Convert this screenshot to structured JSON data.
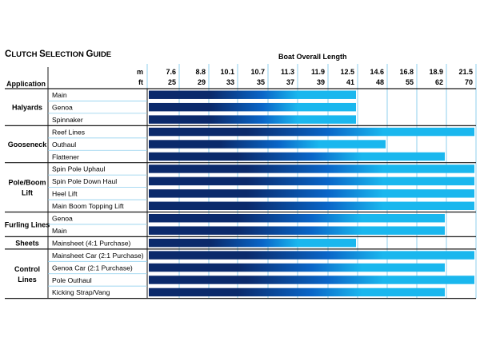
{
  "title": "Clutch Selection Guide",
  "headers": {
    "boat_length": "Boat Overall Length",
    "application": "Application",
    "unit_m": "m",
    "unit_ft": "ft"
  },
  "chart_data": {
    "type": "bar",
    "orientation": "horizontal",
    "lengths_m": [
      "7.6",
      "8.8",
      "10.1",
      "10.7",
      "11.3",
      "11.9",
      "12.5",
      "14.6",
      "16.8",
      "18.9",
      "21.5"
    ],
    "lengths_ft": [
      "25",
      "29",
      "33",
      "35",
      "37",
      "39",
      "41",
      "48",
      "55",
      "62",
      "70"
    ],
    "colors": {
      "dark": "#0b2a6b",
      "mid": "#0a66c8",
      "light": "#1ab7ee",
      "grid": "#8fcfee",
      "border": "#1a1a1a"
    },
    "groups": [
      {
        "name": "Halyards",
        "rows": [
          {
            "label": "Main",
            "end": "41"
          },
          {
            "label": "Genoa",
            "end": "41"
          },
          {
            "label": "Spinnaker",
            "end": "41"
          }
        ]
      },
      {
        "name": "Gooseneck",
        "rows": [
          {
            "label": "Reef Lines",
            "end": "70"
          },
          {
            "label": "Outhaul",
            "end": "48"
          },
          {
            "label": "Flattener",
            "end": "62"
          }
        ]
      },
      {
        "name": "Pole/Boom Lift",
        "rows": [
          {
            "label": "Spin Pole Uphaul",
            "end": "70"
          },
          {
            "label": "Spin Pole Down Haul",
            "end": "70"
          },
          {
            "label": "Heel Lift",
            "end": "70"
          },
          {
            "label": "Main Boom Topping Lift",
            "end": "70"
          }
        ]
      },
      {
        "name": "Furling Lines",
        "rows": [
          {
            "label": "Genoa",
            "end": "62"
          },
          {
            "label": "Main",
            "end": "62"
          }
        ]
      },
      {
        "name": "Sheets",
        "rows": [
          {
            "label": "Mainsheet (4:1 Purchase)",
            "end": "41"
          }
        ]
      },
      {
        "name": "Control Lines",
        "rows": [
          {
            "label": "Mainsheet Car (2:1 Purchase)",
            "end": "70"
          },
          {
            "label": "Genoa Car (2:1 Purchase)",
            "end": "62"
          },
          {
            "label": "Pole Outhaul",
            "end": "70"
          },
          {
            "label": "Kicking Strap/Vang",
            "end": "62"
          }
        ]
      }
    ]
  }
}
